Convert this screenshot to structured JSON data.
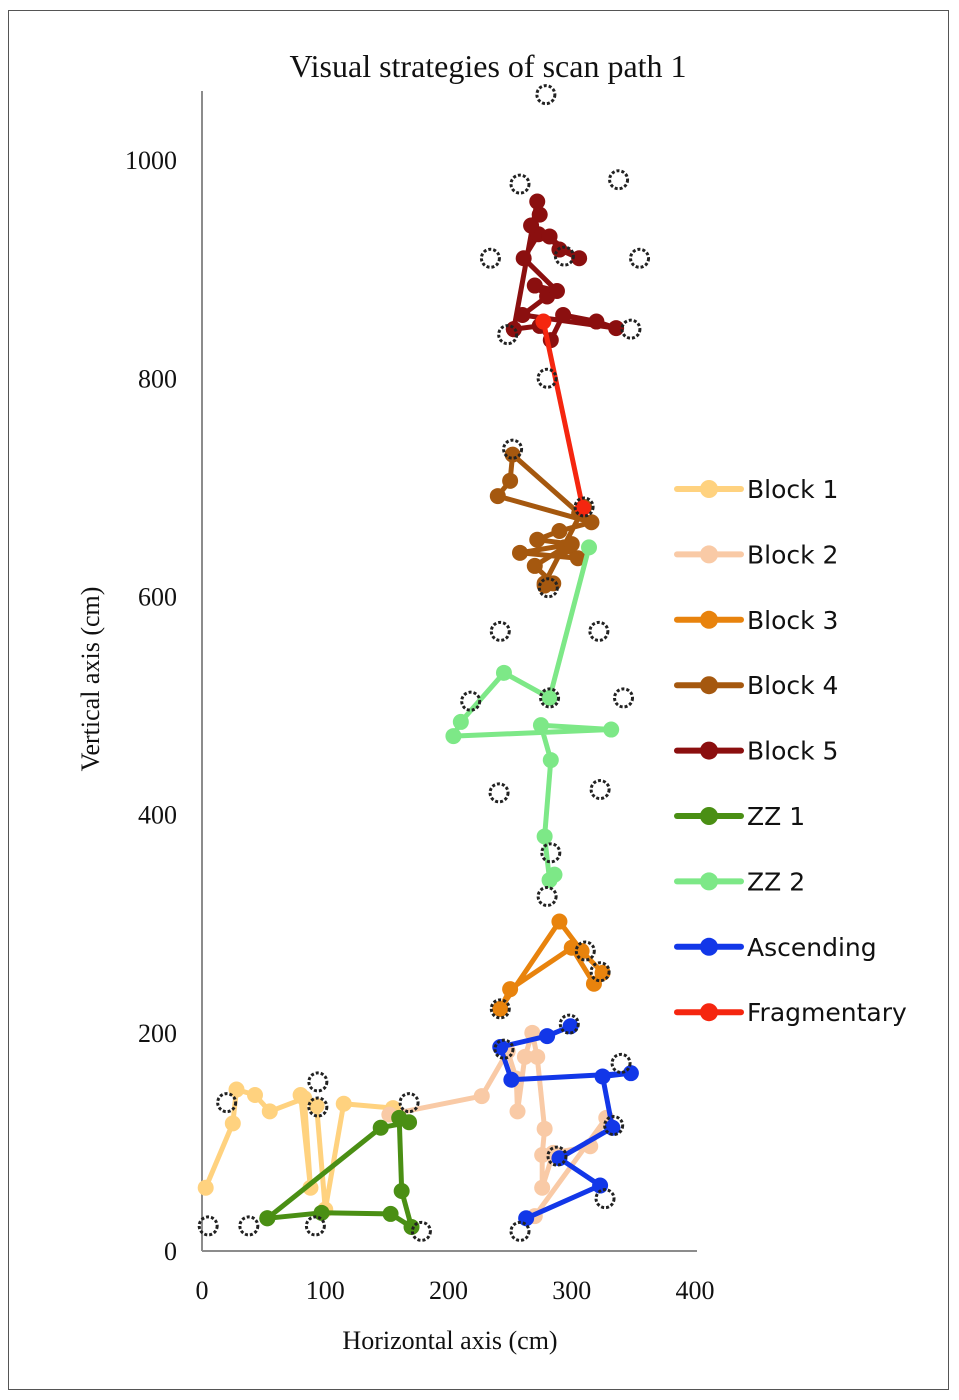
{
  "chart_data": {
    "type": "scatter",
    "title": "Visual strategies of scan path 1",
    "xlabel": "Horizontal axis (cm)",
    "ylabel": "Vertical axis (cm)",
    "xlim": [
      0,
      400
    ],
    "ylim": [
      0,
      1100
    ],
    "x_ticks": [
      "0",
      "100",
      "200",
      "300",
      "400"
    ],
    "y_ticks": [
      "0",
      "200",
      "400",
      "600",
      "800",
      "1000"
    ],
    "grid": false,
    "legend_position": "right",
    "targets": [
      [
        5,
        23
      ],
      [
        38,
        23
      ],
      [
        92,
        23
      ],
      [
        178,
        18
      ],
      [
        258,
        18
      ],
      [
        327,
        48
      ],
      [
        288,
        87
      ],
      [
        334,
        115
      ],
      [
        340,
        172
      ],
      [
        242,
        222
      ],
      [
        298,
        208
      ],
      [
        245,
        185
      ],
      [
        20,
        136
      ],
      [
        94,
        132
      ],
      [
        94,
        155
      ],
      [
        168,
        136
      ],
      [
        323,
        256
      ],
      [
        311,
        275
      ],
      [
        280,
        325
      ],
      [
        283,
        365
      ],
      [
        241,
        420
      ],
      [
        323,
        423
      ],
      [
        218,
        504
      ],
      [
        282,
        507
      ],
      [
        342,
        507
      ],
      [
        242,
        568
      ],
      [
        322,
        568
      ],
      [
        281,
        608
      ],
      [
        310,
        682
      ],
      [
        252,
        735
      ],
      [
        280,
        800
      ],
      [
        248,
        840
      ],
      [
        348,
        845
      ],
      [
        234,
        910
      ],
      [
        294,
        912
      ],
      [
        355,
        910
      ],
      [
        258,
        978
      ],
      [
        338,
        982
      ],
      [
        279,
        1060
      ]
    ],
    "series": [
      {
        "name": "Block 1",
        "color": "#FFD27F",
        "points": [
          [
            3,
            58
          ],
          [
            25,
            117
          ],
          [
            28,
            148
          ],
          [
            43,
            143
          ],
          [
            55,
            128
          ],
          [
            83,
            140
          ],
          [
            88,
            58
          ],
          [
            80,
            143
          ],
          [
            93,
            133
          ],
          [
            100,
            38
          ],
          [
            115,
            135
          ],
          [
            155,
            131
          ]
        ]
      },
      {
        "name": "Block 2",
        "color": "#F9CAA6",
        "points": [
          [
            152,
            125
          ],
          [
            227,
            142
          ],
          [
            248,
            183
          ],
          [
            255,
            158
          ],
          [
            256,
            128
          ],
          [
            262,
            178
          ],
          [
            268,
            200
          ],
          [
            272,
            178
          ],
          [
            278,
            112
          ],
          [
            276,
            88
          ],
          [
            276,
            58
          ],
          [
            285,
            90
          ],
          [
            315,
            96
          ],
          [
            328,
            122
          ],
          [
            270,
            32
          ]
        ]
      },
      {
        "name": "Block 3",
        "color": "#E8830D",
        "points": [
          [
            242,
            222
          ],
          [
            250,
            240
          ],
          [
            300,
            278
          ],
          [
            318,
            245
          ],
          [
            325,
            255
          ],
          [
            308,
            275
          ],
          [
            290,
            302
          ],
          [
            242,
            222
          ]
        ]
      },
      {
        "name": "Block 4",
        "color": "#A5580F",
        "points": [
          [
            278,
            610
          ],
          [
            285,
            612
          ],
          [
            270,
            628
          ],
          [
            294,
            645
          ],
          [
            305,
            635
          ],
          [
            258,
            640
          ],
          [
            300,
            648
          ],
          [
            272,
            652
          ],
          [
            290,
            660
          ],
          [
            316,
            668
          ],
          [
            240,
            692
          ],
          [
            250,
            706
          ],
          [
            252,
            730
          ],
          [
            306,
            676
          ],
          [
            310,
            682
          ],
          [
            278,
            612
          ]
        ]
      },
      {
        "name": "Block 5",
        "color": "#8B0F0F",
        "points": [
          [
            253,
            845
          ],
          [
            274,
            848
          ],
          [
            283,
            835
          ],
          [
            293,
            858
          ],
          [
            320,
            852
          ],
          [
            336,
            846
          ],
          [
            260,
            858
          ],
          [
            280,
            875
          ],
          [
            270,
            885
          ],
          [
            288,
            880
          ],
          [
            261,
            910
          ],
          [
            273,
            932
          ],
          [
            282,
            930
          ],
          [
            290,
            918
          ],
          [
            306,
            910
          ],
          [
            267,
            940
          ],
          [
            274,
            950
          ],
          [
            272,
            962
          ],
          [
            253,
            845
          ]
        ]
      },
      {
        "name": "ZZ 1",
        "color": "#4A8F14",
        "points": [
          [
            53,
            30
          ],
          [
            97,
            35
          ],
          [
            153,
            34
          ],
          [
            170,
            22
          ],
          [
            162,
            55
          ],
          [
            160,
            122
          ],
          [
            168,
            118
          ],
          [
            145,
            113
          ],
          [
            53,
            30
          ]
        ]
      },
      {
        "name": "ZZ 2",
        "color": "#7DE887",
        "points": [
          [
            286,
            345
          ],
          [
            282,
            340
          ],
          [
            278,
            380
          ],
          [
            283,
            450
          ],
          [
            275,
            482
          ],
          [
            332,
            478
          ],
          [
            204,
            472
          ],
          [
            210,
            485
          ],
          [
            245,
            530
          ],
          [
            282,
            507
          ],
          [
            314,
            645
          ]
        ]
      },
      {
        "name": "Ascending",
        "color": "#1237E8",
        "points": [
          [
            263,
            30
          ],
          [
            323,
            60
          ],
          [
            290,
            85
          ],
          [
            333,
            113
          ],
          [
            325,
            160
          ],
          [
            348,
            163
          ],
          [
            251,
            157
          ],
          [
            242,
            187
          ],
          [
            280,
            197
          ],
          [
            299,
            206
          ]
        ]
      },
      {
        "name": "Fragmentary",
        "color": "#F5260F",
        "points": [
          [
            277,
            852
          ],
          [
            309,
            681
          ]
        ]
      }
    ]
  }
}
